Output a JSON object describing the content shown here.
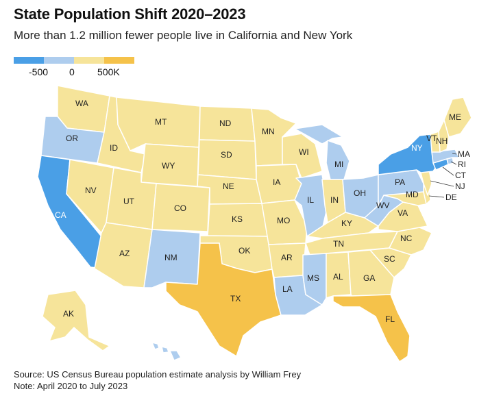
{
  "header": {
    "title": "State Population Shift 2020–2023",
    "subtitle": "More than 1.2 million fewer people live in California and New York"
  },
  "legend": {
    "ticks": [
      "-500",
      "0",
      "500K"
    ],
    "colors": [
      "#4a9fe6",
      "#aecdee",
      "#f6e49a",
      "#f5c24a"
    ]
  },
  "states": [
    {
      "id": "WA",
      "label": "WA",
      "category": "small-gain"
    },
    {
      "id": "OR",
      "label": "OR",
      "category": "small-loss"
    },
    {
      "id": "CA",
      "label": "CA",
      "category": "large-loss"
    },
    {
      "id": "ID",
      "label": "ID",
      "category": "small-gain"
    },
    {
      "id": "NV",
      "label": "NV",
      "category": "small-gain"
    },
    {
      "id": "MT",
      "label": "MT",
      "category": "small-gain"
    },
    {
      "id": "WY",
      "label": "WY",
      "category": "small-gain"
    },
    {
      "id": "UT",
      "label": "UT",
      "category": "small-gain"
    },
    {
      "id": "AZ",
      "label": "AZ",
      "category": "small-gain"
    },
    {
      "id": "CO",
      "label": "CO",
      "category": "small-gain"
    },
    {
      "id": "NM",
      "label": "NM",
      "category": "small-loss"
    },
    {
      "id": "ND",
      "label": "ND",
      "category": "small-gain"
    },
    {
      "id": "SD",
      "label": "SD",
      "category": "small-gain"
    },
    {
      "id": "NE",
      "label": "NE",
      "category": "small-gain"
    },
    {
      "id": "KS",
      "label": "KS",
      "category": "small-gain"
    },
    {
      "id": "OK",
      "label": "OK",
      "category": "small-gain"
    },
    {
      "id": "TX",
      "label": "TX",
      "category": "large-gain"
    },
    {
      "id": "MN",
      "label": "MN",
      "category": "small-gain"
    },
    {
      "id": "IA",
      "label": "IA",
      "category": "small-gain"
    },
    {
      "id": "MO",
      "label": "MO",
      "category": "small-gain"
    },
    {
      "id": "AR",
      "label": "AR",
      "category": "small-gain"
    },
    {
      "id": "LA",
      "label": "LA",
      "category": "small-loss"
    },
    {
      "id": "WI",
      "label": "WI",
      "category": "small-gain"
    },
    {
      "id": "IL",
      "label": "IL",
      "category": "small-loss"
    },
    {
      "id": "MI",
      "label": "MI",
      "category": "small-loss"
    },
    {
      "id": "IN",
      "label": "IN",
      "category": "small-gain"
    },
    {
      "id": "OH",
      "label": "OH",
      "category": "small-loss"
    },
    {
      "id": "KY",
      "label": "KY",
      "category": "small-gain"
    },
    {
      "id": "TN",
      "label": "TN",
      "category": "small-gain"
    },
    {
      "id": "MS",
      "label": "MS",
      "category": "small-loss"
    },
    {
      "id": "AL",
      "label": "AL",
      "category": "small-gain"
    },
    {
      "id": "GA",
      "label": "GA",
      "category": "small-gain"
    },
    {
      "id": "FL",
      "label": "FL",
      "category": "large-gain"
    },
    {
      "id": "SC",
      "label": "SC",
      "category": "small-gain"
    },
    {
      "id": "NC",
      "label": "NC",
      "category": "small-gain"
    },
    {
      "id": "VA",
      "label": "VA",
      "category": "small-gain"
    },
    {
      "id": "WV",
      "label": "WV",
      "category": "small-loss"
    },
    {
      "id": "PA",
      "label": "PA",
      "category": "small-loss"
    },
    {
      "id": "NY",
      "label": "NY",
      "category": "large-loss"
    },
    {
      "id": "VT",
      "label": "VT",
      "category": "small-gain"
    },
    {
      "id": "NH",
      "label": "NH",
      "category": "small-gain"
    },
    {
      "id": "ME",
      "label": "ME",
      "category": "small-gain"
    },
    {
      "id": "MA",
      "label": "MA",
      "category": "small-loss"
    },
    {
      "id": "RI",
      "label": "RI",
      "category": "small-loss"
    },
    {
      "id": "CT",
      "label": "CT",
      "category": "large-loss"
    },
    {
      "id": "NJ",
      "label": "NJ",
      "category": "small-gain"
    },
    {
      "id": "DE",
      "label": "DE",
      "category": "small-gain"
    },
    {
      "id": "MD",
      "label": "MD",
      "category": "small-gain"
    },
    {
      "id": "AK",
      "label": "AK",
      "category": "small-gain"
    },
    {
      "id": "HI",
      "label": "",
      "category": "small-loss"
    }
  ],
  "category_colors": {
    "large-loss": "#4a9fe6",
    "small-loss": "#aecdee",
    "small-gain": "#f6e49a",
    "large-gain": "#f5c24a"
  },
  "footer": {
    "source": "Source: US Census Bureau population estimate analysis by William Frey",
    "note": "Note: April 2020 to July 2023"
  }
}
